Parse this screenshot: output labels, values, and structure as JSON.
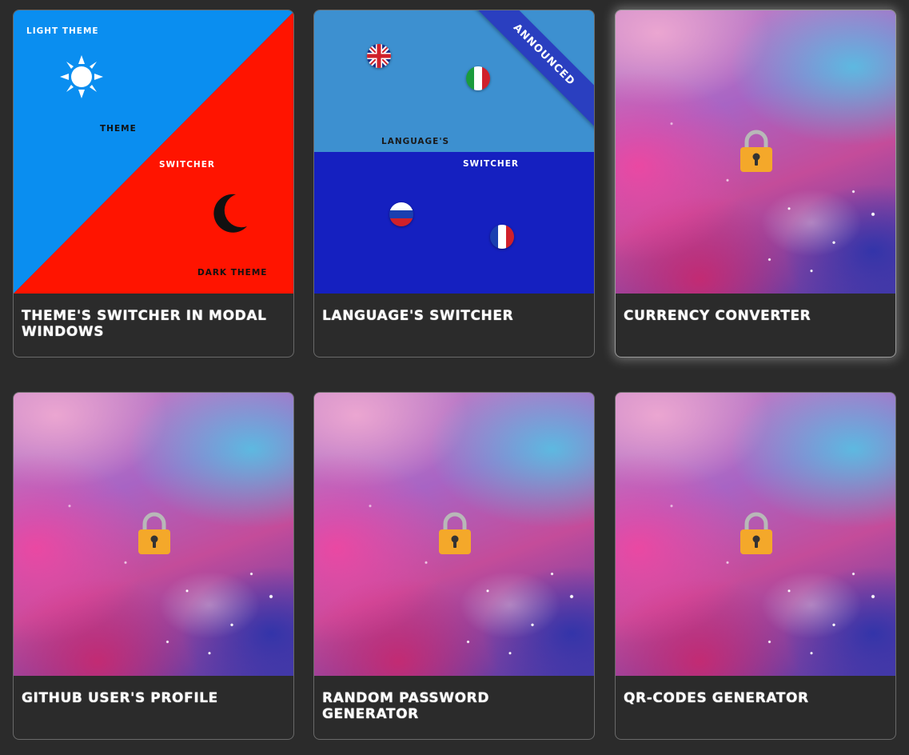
{
  "cards": [
    {
      "title": "THEME'S SWITCHER IN MODAL WINDOWS",
      "thumb": {
        "light_label": "LIGHT THEME",
        "theme_label": "THEME",
        "switcher_label": "SWITCHER",
        "dark_label": "DARK THEME",
        "colors": {
          "light": "#0a8ef0",
          "dark": "#ff1400"
        }
      }
    },
    {
      "title": "LANGUAGE'S SWITCHER",
      "thumb": {
        "ribbon": "ANNOUNCED",
        "languages_label": "LANGUAGE'S",
        "switcher_label": "SWITCHER",
        "flags": [
          "uk-flag-icon",
          "italy-flag-icon",
          "russia-flag-icon",
          "france-flag-icon"
        ],
        "colors": {
          "top": "#3d90d0",
          "bottom": "#1520c0"
        }
      }
    },
    {
      "title": "CURRENCY CONVERTER",
      "locked": true
    },
    {
      "title": "GITHUB USER'S PROFILE",
      "locked": true
    },
    {
      "title": "RANDOM PASSWORD GENERATOR",
      "locked": true
    },
    {
      "title": "QR-CODES GENERATOR",
      "locked": true
    }
  ],
  "icons": {
    "lock": "lock-icon",
    "sun": "sun-icon",
    "moon": "moon-icon"
  }
}
